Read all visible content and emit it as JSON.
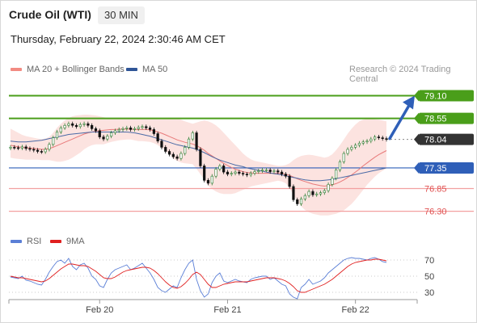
{
  "header": {
    "title": "Crude Oil (WTI)",
    "timeframe": "30 MIN",
    "timestamp": "Thursday, February 22, 2024 2:30:46 AM CET"
  },
  "legend": {
    "ma20": "MA 20 + Bollinger Bands",
    "ma50": "MA 50",
    "rsi": "RSI",
    "rsi_ma": "9MA",
    "ma20_color": "#f28b82",
    "ma50_color": "#2f5597",
    "rsi_color": "#5b7fd6",
    "rsi_ma_color": "#e02020"
  },
  "credit": "Research © 2024 Trading Central",
  "chart_data": {
    "type": "candlestick",
    "price_ylim": [
      76.0,
      79.5
    ],
    "rsi_ylim": [
      20,
      80
    ],
    "x_ticks": [
      {
        "label": "Feb 20",
        "index": 23
      },
      {
        "label": "Feb 21",
        "index": 56
      },
      {
        "label": "Feb 22",
        "index": 89
      }
    ],
    "levels": [
      {
        "value": 79.1,
        "label": "79.10",
        "style": "resistance"
      },
      {
        "value": 78.55,
        "label": "78.55",
        "style": "resistance"
      },
      {
        "value": 78.04,
        "label": "78.04",
        "style": "last"
      },
      {
        "value": 77.35,
        "label": "77.35",
        "style": "pivot"
      },
      {
        "value": 76.85,
        "label": "76.85",
        "style": "support"
      },
      {
        "value": 76.3,
        "label": "76.30",
        "style": "support"
      }
    ],
    "rsi_levels": [
      70,
      50,
      30
    ],
    "close": [
      77.85,
      77.84,
      77.83,
      77.86,
      77.82,
      77.8,
      77.78,
      77.75,
      77.74,
      77.8,
      77.92,
      78.08,
      78.22,
      78.32,
      78.38,
      78.42,
      78.38,
      78.35,
      78.4,
      78.42,
      78.38,
      78.3,
      78.25,
      78.1,
      78.05,
      78.12,
      78.2,
      78.25,
      78.28,
      78.3,
      78.32,
      78.28,
      78.3,
      78.33,
      78.35,
      78.32,
      78.28,
      78.18,
      78.0,
      77.85,
      77.75,
      77.68,
      77.62,
      77.58,
      77.7,
      77.85,
      78.05,
      78.2,
      77.8,
      77.4,
      77.05,
      76.98,
      77.15,
      77.32,
      77.4,
      77.25,
      77.2,
      77.22,
      77.25,
      77.22,
      77.2,
      77.18,
      77.22,
      77.26,
      77.28,
      77.3,
      77.3,
      77.26,
      77.28,
      77.25,
      77.2,
      77.15,
      76.9,
      76.58,
      76.48,
      76.6,
      76.68,
      76.78,
      76.7,
      76.72,
      76.75,
      76.8,
      76.95,
      77.1,
      77.3,
      77.5,
      77.7,
      77.8,
      77.85,
      77.9,
      77.95,
      77.98,
      78.0,
      78.05,
      78.1,
      78.08,
      78.06,
      78.04
    ],
    "ma20": [
      77.9,
      77.88,
      77.86,
      77.85,
      77.84,
      77.83,
      77.82,
      77.81,
      77.8,
      77.8,
      77.82,
      77.85,
      77.89,
      77.93,
      77.97,
      78.01,
      78.05,
      78.09,
      78.13,
      78.17,
      78.2,
      78.22,
      78.24,
      78.25,
      78.26,
      78.27,
      78.28,
      78.28,
      78.29,
      78.29,
      78.29,
      78.29,
      78.28,
      78.28,
      78.28,
      78.28,
      78.27,
      78.25,
      78.22,
      78.19,
      78.15,
      78.11,
      78.07,
      78.03,
      78.0,
      77.97,
      77.95,
      77.93,
      77.89,
      77.84,
      77.78,
      77.7,
      77.64,
      77.58,
      77.52,
      77.46,
      77.41,
      77.36,
      77.32,
      77.29,
      77.26,
      77.24,
      77.23,
      77.22,
      77.22,
      77.22,
      77.22,
      77.22,
      77.22,
      77.22,
      77.21,
      77.2,
      77.17,
      77.13,
      77.09,
      77.05,
      77.02,
      76.99,
      76.96,
      76.94,
      76.92,
      76.91,
      76.92,
      76.94,
      76.97,
      77.01,
      77.06,
      77.12,
      77.18,
      77.25,
      77.32,
      77.4,
      77.47,
      77.54,
      77.61,
      77.67,
      77.72,
      77.77
    ],
    "bb_upper": [
      78.3,
      78.25,
      78.2,
      78.15,
      78.12,
      78.1,
      78.08,
      78.06,
      78.05,
      78.06,
      78.1,
      78.2,
      78.32,
      78.42,
      78.5,
      78.56,
      78.6,
      78.62,
      78.63,
      78.64,
      78.64,
      78.63,
      78.62,
      78.6,
      78.58,
      78.56,
      78.55,
      78.54,
      78.54,
      78.54,
      78.55,
      78.56,
      78.56,
      78.56,
      78.56,
      78.55,
      78.55,
      78.54,
      78.53,
      78.53,
      78.54,
      78.55,
      78.55,
      78.55,
      78.52,
      78.48,
      78.45,
      78.42,
      78.45,
      78.48,
      78.5,
      78.48,
      78.44,
      78.38,
      78.3,
      78.2,
      78.1,
      78.0,
      77.9,
      77.8,
      77.7,
      77.62,
      77.56,
      77.52,
      77.5,
      77.48,
      77.46,
      77.44,
      77.42,
      77.4,
      77.4,
      77.42,
      77.46,
      77.54,
      77.6,
      77.64,
      77.66,
      77.67,
      77.66,
      77.64,
      77.62,
      77.6,
      77.62,
      77.68,
      77.78,
      77.9,
      78.04,
      78.18,
      78.3,
      78.4,
      78.48,
      78.52,
      78.54,
      78.54,
      78.53,
      78.52,
      78.5,
      78.48
    ],
    "bb_lower": [
      77.6,
      77.58,
      77.57,
      77.56,
      77.55,
      77.55,
      77.55,
      77.55,
      77.54,
      77.54,
      77.54,
      77.52,
      77.5,
      77.5,
      77.52,
      77.55,
      77.6,
      77.66,
      77.72,
      77.8,
      77.86,
      77.9,
      77.92,
      77.92,
      77.92,
      77.95,
      77.98,
      78.0,
      78.02,
      78.03,
      78.04,
      78.04,
      78.02,
      78.0,
      78.0,
      77.99,
      77.98,
      77.95,
      77.9,
      77.84,
      77.76,
      77.68,
      77.58,
      77.52,
      77.48,
      77.46,
      77.45,
      77.44,
      77.33,
      77.2,
      77.06,
      76.92,
      76.84,
      76.78,
      76.74,
      76.72,
      76.72,
      76.72,
      76.74,
      76.78,
      76.82,
      76.86,
      76.9,
      76.92,
      76.94,
      76.96,
      76.98,
      77.0,
      77.02,
      77.04,
      77.02,
      76.98,
      76.86,
      76.7,
      76.55,
      76.42,
      76.33,
      76.28,
      76.24,
      76.22,
      76.2,
      76.2,
      76.2,
      76.22,
      76.24,
      76.28,
      76.32,
      76.4,
      76.48,
      76.58,
      76.7,
      76.82,
      76.94,
      77.04,
      77.14,
      77.22,
      77.28,
      77.34
    ],
    "ma50": [
      78.0,
      77.99,
      77.98,
      77.98,
      77.98,
      77.99,
      78.0,
      78.01,
      78.02,
      78.04,
      78.06,
      78.08,
      78.1,
      78.12,
      78.14,
      78.16,
      78.17,
      78.18,
      78.19,
      78.2,
      78.21,
      78.22,
      78.22,
      78.22,
      78.22,
      78.22,
      78.22,
      78.22,
      78.22,
      78.22,
      78.22,
      78.21,
      78.2,
      78.18,
      78.16,
      78.14,
      78.12,
      78.09,
      78.06,
      78.03,
      78.0,
      77.97,
      77.94,
      77.91,
      77.89,
      77.87,
      77.85,
      77.83,
      77.8,
      77.76,
      77.72,
      77.67,
      77.62,
      77.58,
      77.54,
      77.51,
      77.48,
      77.45,
      77.42,
      77.4,
      77.38,
      77.35,
      77.33,
      77.31,
      77.29,
      77.27,
      77.25,
      77.23,
      77.21,
      77.2,
      77.18,
      77.16,
      77.14,
      77.12,
      77.1,
      77.08,
      77.06,
      77.05,
      77.04,
      77.04,
      77.04,
      77.05,
      77.06,
      77.07,
      77.09,
      77.11,
      77.13,
      77.15,
      77.17,
      77.19,
      77.21,
      77.23,
      77.25,
      77.27,
      77.29,
      77.31,
      77.33,
      77.35
    ],
    "rsi": [
      49,
      48,
      47,
      50,
      45,
      44,
      42,
      40,
      39,
      46,
      55,
      62,
      68,
      70,
      66,
      72,
      62,
      58,
      64,
      66,
      60,
      50,
      46,
      38,
      36,
      46,
      54,
      58,
      60,
      62,
      64,
      58,
      60,
      63,
      66,
      60,
      54,
      46,
      36,
      32,
      30,
      34,
      38,
      36,
      48,
      58,
      66,
      70,
      46,
      32,
      24,
      28,
      42,
      50,
      54,
      44,
      42,
      44,
      46,
      44,
      43,
      42,
      46,
      48,
      49,
      50,
      50,
      46,
      48,
      44,
      40,
      38,
      28,
      24,
      22,
      36,
      40,
      46,
      40,
      42,
      44,
      48,
      54,
      58,
      62,
      66,
      70,
      72,
      73,
      72,
      72,
      71,
      70,
      72,
      73,
      71,
      68,
      67
    ],
    "rsi_ma": [
      50,
      49,
      48,
      48,
      47,
      46,
      45,
      44,
      43,
      44,
      47,
      51,
      55,
      59,
      62,
      65,
      65,
      64,
      63,
      63,
      62,
      59,
      56,
      52,
      48,
      47,
      47,
      49,
      52,
      55,
      57,
      58,
      59,
      60,
      61,
      61,
      60,
      57,
      53,
      48,
      43,
      39,
      36,
      35,
      37,
      41,
      46,
      52,
      55,
      52,
      46,
      40,
      36,
      36,
      38,
      40,
      41,
      42,
      43,
      43,
      43,
      43,
      44,
      45,
      46,
      47,
      48,
      48,
      48,
      47,
      46,
      44,
      41,
      37,
      32,
      30,
      30,
      32,
      34,
      36,
      38,
      40,
      43,
      46,
      50,
      54,
      58,
      62,
      65,
      67,
      68,
      69,
      70,
      70,
      71,
      71,
      70,
      69
    ]
  }
}
